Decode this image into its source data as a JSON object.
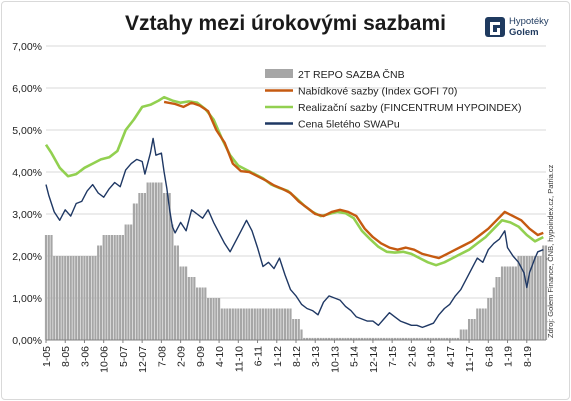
{
  "title": "Vztahy mezi úrokovými sazbami",
  "logo": {
    "line1": "Hypotéky",
    "line2": "Golem"
  },
  "source_note": "Zdroj: Golem Finance, ČNB, hypoindex.cz, Patria.cz",
  "colors": {
    "repo": "#a6a6a6",
    "offer": "#c55a11",
    "realized": "#92d050",
    "swap": "#1f3864",
    "grid": "#d9d9d9",
    "logo": "#1f3a5f"
  },
  "chart_data": {
    "type": "bar",
    "x_tick_labels": [
      "1-05",
      "8-05",
      "3-06",
      "10-06",
      "5-07",
      "12-07",
      "7-08",
      "2-09",
      "9-09",
      "4-10",
      "11-10",
      "6-11",
      "1-12",
      "8-12",
      "3-13",
      "10-13",
      "5-14",
      "12-14",
      "7-15",
      "2-16",
      "9-16",
      "4-17",
      "11-17",
      "6-18",
      "1-19",
      "8-19"
    ],
    "x_range": [
      "2005-01",
      "2020-03"
    ],
    "y_tick_labels": [
      "0,00%",
      "1,00%",
      "2,00%",
      "3,00%",
      "4,00%",
      "5,00%",
      "6,00%",
      "7,00%"
    ],
    "ylim": [
      0,
      7
    ],
    "grid": true,
    "legend_position": "top-center",
    "series": [
      {
        "name": "2T REPO SAZBA ČNB",
        "kind": "bar",
        "points": [
          [
            "2005-01",
            2.5
          ],
          [
            "2005-04",
            2.0
          ],
          [
            "2006-08",
            2.25
          ],
          [
            "2006-10",
            2.5
          ],
          [
            "2007-06",
            2.75
          ],
          [
            "2007-09",
            3.25
          ],
          [
            "2007-11",
            3.5
          ],
          [
            "2008-02",
            3.75
          ],
          [
            "2008-08",
            3.5
          ],
          [
            "2008-11",
            2.75
          ],
          [
            "2008-12",
            2.25
          ],
          [
            "2009-02",
            1.75
          ],
          [
            "2009-05",
            1.5
          ],
          [
            "2009-08",
            1.25
          ],
          [
            "2009-12",
            1.0
          ],
          [
            "2010-05",
            0.75
          ],
          [
            "2012-07",
            0.5
          ],
          [
            "2012-10",
            0.25
          ],
          [
            "2012-11",
            0.05
          ],
          [
            "2017-08",
            0.25
          ],
          [
            "2017-11",
            0.5
          ],
          [
            "2018-02",
            0.75
          ],
          [
            "2018-06",
            1.0
          ],
          [
            "2018-08",
            1.25
          ],
          [
            "2018-09",
            1.5
          ],
          [
            "2018-11",
            1.75
          ],
          [
            "2019-05",
            2.0
          ],
          [
            "2020-02",
            2.25
          ]
        ]
      },
      {
        "name": "Nabídkové sazby  (Index GOFI 70)",
        "kind": "line",
        "points": [
          [
            "2008-08",
            5.67
          ],
          [
            "2008-12",
            5.62
          ],
          [
            "2009-03",
            5.55
          ],
          [
            "2009-06",
            5.65
          ],
          [
            "2009-09",
            5.58
          ],
          [
            "2009-12",
            5.45
          ],
          [
            "2010-03",
            5.0
          ],
          [
            "2010-06",
            4.7
          ],
          [
            "2010-09",
            4.2
          ],
          [
            "2010-12",
            4.02
          ],
          [
            "2011-03",
            4.0
          ],
          [
            "2011-06",
            3.9
          ],
          [
            "2011-09",
            3.8
          ],
          [
            "2011-12",
            3.68
          ],
          [
            "2012-03",
            3.6
          ],
          [
            "2012-06",
            3.5
          ],
          [
            "2012-09",
            3.3
          ],
          [
            "2012-12",
            3.15
          ],
          [
            "2013-03",
            3.0
          ],
          [
            "2013-06",
            2.95
          ],
          [
            "2013-09",
            3.05
          ],
          [
            "2013-12",
            3.1
          ],
          [
            "2014-03",
            3.05
          ],
          [
            "2014-06",
            2.95
          ],
          [
            "2014-09",
            2.65
          ],
          [
            "2014-12",
            2.45
          ],
          [
            "2015-03",
            2.3
          ],
          [
            "2015-06",
            2.2
          ],
          [
            "2015-09",
            2.15
          ],
          [
            "2015-12",
            2.2
          ],
          [
            "2016-03",
            2.15
          ],
          [
            "2016-06",
            2.05
          ],
          [
            "2016-09",
            2.0
          ],
          [
            "2016-12",
            1.95
          ],
          [
            "2017-03",
            2.05
          ],
          [
            "2017-06",
            2.15
          ],
          [
            "2017-09",
            2.25
          ],
          [
            "2017-12",
            2.35
          ],
          [
            "2018-03",
            2.5
          ],
          [
            "2018-06",
            2.65
          ],
          [
            "2018-09",
            2.85
          ],
          [
            "2018-12",
            3.05
          ],
          [
            "2019-03",
            2.95
          ],
          [
            "2019-06",
            2.85
          ],
          [
            "2019-09",
            2.65
          ],
          [
            "2019-12",
            2.5
          ],
          [
            "2020-02",
            2.55
          ]
        ]
      },
      {
        "name": "Realizační sazby  (FINCENTRUM   HYPOINDEX)",
        "kind": "line",
        "points": [
          [
            "2005-01",
            4.65
          ],
          [
            "2005-03",
            4.45
          ],
          [
            "2005-06",
            4.1
          ],
          [
            "2005-09",
            3.9
          ],
          [
            "2005-12",
            3.95
          ],
          [
            "2006-03",
            4.1
          ],
          [
            "2006-06",
            4.2
          ],
          [
            "2006-09",
            4.3
          ],
          [
            "2006-12",
            4.35
          ],
          [
            "2007-03",
            4.5
          ],
          [
            "2007-06",
            5.0
          ],
          [
            "2007-09",
            5.25
          ],
          [
            "2007-12",
            5.55
          ],
          [
            "2008-03",
            5.6
          ],
          [
            "2008-06",
            5.7
          ],
          [
            "2008-08",
            5.78
          ],
          [
            "2008-11",
            5.7
          ],
          [
            "2009-02",
            5.65
          ],
          [
            "2009-05",
            5.68
          ],
          [
            "2009-08",
            5.65
          ],
          [
            "2009-11",
            5.5
          ],
          [
            "2010-02",
            5.25
          ],
          [
            "2010-05",
            4.8
          ],
          [
            "2010-08",
            4.4
          ],
          [
            "2010-11",
            4.15
          ],
          [
            "2011-02",
            4.05
          ],
          [
            "2011-05",
            3.95
          ],
          [
            "2011-08",
            3.85
          ],
          [
            "2011-11",
            3.7
          ],
          [
            "2012-02",
            3.62
          ],
          [
            "2012-05",
            3.55
          ],
          [
            "2012-08",
            3.38
          ],
          [
            "2012-11",
            3.2
          ],
          [
            "2013-02",
            3.05
          ],
          [
            "2013-05",
            2.95
          ],
          [
            "2013-08",
            3.0
          ],
          [
            "2013-11",
            3.05
          ],
          [
            "2014-02",
            3.02
          ],
          [
            "2014-05",
            2.9
          ],
          [
            "2014-08",
            2.6
          ],
          [
            "2014-11",
            2.4
          ],
          [
            "2015-02",
            2.22
          ],
          [
            "2015-05",
            2.1
          ],
          [
            "2015-08",
            2.08
          ],
          [
            "2015-11",
            2.1
          ],
          [
            "2016-02",
            2.05
          ],
          [
            "2016-05",
            1.95
          ],
          [
            "2016-08",
            1.85
          ],
          [
            "2016-11",
            1.78
          ],
          [
            "2017-02",
            1.85
          ],
          [
            "2017-05",
            1.95
          ],
          [
            "2017-08",
            2.05
          ],
          [
            "2017-11",
            2.15
          ],
          [
            "2018-02",
            2.3
          ],
          [
            "2018-05",
            2.45
          ],
          [
            "2018-08",
            2.65
          ],
          [
            "2018-11",
            2.85
          ],
          [
            "2019-02",
            2.8
          ],
          [
            "2019-05",
            2.7
          ],
          [
            "2019-08",
            2.5
          ],
          [
            "2019-11",
            2.35
          ],
          [
            "2020-02",
            2.45
          ]
        ]
      },
      {
        "name": "Cena 5letého SWAPu",
        "kind": "line",
        "points": [
          [
            "2005-01",
            3.7
          ],
          [
            "2005-02",
            3.45
          ],
          [
            "2005-04",
            3.05
          ],
          [
            "2005-06",
            2.85
          ],
          [
            "2005-08",
            3.1
          ],
          [
            "2005-10",
            2.95
          ],
          [
            "2005-12",
            3.25
          ],
          [
            "2006-02",
            3.3
          ],
          [
            "2006-04",
            3.55
          ],
          [
            "2006-06",
            3.7
          ],
          [
            "2006-08",
            3.5
          ],
          [
            "2006-10",
            3.4
          ],
          [
            "2006-12",
            3.6
          ],
          [
            "2007-02",
            3.75
          ],
          [
            "2007-04",
            3.65
          ],
          [
            "2007-06",
            4.05
          ],
          [
            "2007-08",
            4.2
          ],
          [
            "2007-10",
            4.3
          ],
          [
            "2007-12",
            4.25
          ],
          [
            "2008-01",
            3.95
          ],
          [
            "2008-03",
            4.45
          ],
          [
            "2008-04",
            4.8
          ],
          [
            "2008-05",
            4.4
          ],
          [
            "2008-07",
            4.45
          ],
          [
            "2008-08",
            4.0
          ],
          [
            "2008-09",
            3.6
          ],
          [
            "2008-10",
            3.1
          ],
          [
            "2008-11",
            2.7
          ],
          [
            "2008-12",
            2.55
          ],
          [
            "2009-02",
            2.8
          ],
          [
            "2009-04",
            2.6
          ],
          [
            "2009-06",
            3.1
          ],
          [
            "2009-08",
            3.0
          ],
          [
            "2009-10",
            2.9
          ],
          [
            "2009-12",
            3.1
          ],
          [
            "2010-02",
            2.8
          ],
          [
            "2010-04",
            2.55
          ],
          [
            "2010-06",
            2.3
          ],
          [
            "2010-08",
            2.1
          ],
          [
            "2010-10",
            2.35
          ],
          [
            "2010-12",
            2.6
          ],
          [
            "2011-02",
            2.85
          ],
          [
            "2011-04",
            2.6
          ],
          [
            "2011-06",
            2.2
          ],
          [
            "2011-08",
            1.75
          ],
          [
            "2011-10",
            1.85
          ],
          [
            "2011-12",
            1.7
          ],
          [
            "2012-02",
            1.95
          ],
          [
            "2012-04",
            1.55
          ],
          [
            "2012-06",
            1.2
          ],
          [
            "2012-08",
            1.05
          ],
          [
            "2012-10",
            0.85
          ],
          [
            "2012-12",
            0.75
          ],
          [
            "2013-02",
            0.7
          ],
          [
            "2013-04",
            0.6
          ],
          [
            "2013-06",
            0.9
          ],
          [
            "2013-08",
            1.05
          ],
          [
            "2013-10",
            1.0
          ],
          [
            "2013-12",
            0.95
          ],
          [
            "2014-02",
            0.8
          ],
          [
            "2014-04",
            0.7
          ],
          [
            "2014-06",
            0.55
          ],
          [
            "2014-08",
            0.5
          ],
          [
            "2014-10",
            0.45
          ],
          [
            "2014-12",
            0.45
          ],
          [
            "2015-02",
            0.35
          ],
          [
            "2015-04",
            0.5
          ],
          [
            "2015-06",
            0.65
          ],
          [
            "2015-08",
            0.55
          ],
          [
            "2015-10",
            0.45
          ],
          [
            "2015-12",
            0.4
          ],
          [
            "2016-02",
            0.35
          ],
          [
            "2016-04",
            0.35
          ],
          [
            "2016-06",
            0.3
          ],
          [
            "2016-08",
            0.35
          ],
          [
            "2016-10",
            0.4
          ],
          [
            "2016-12",
            0.6
          ],
          [
            "2017-02",
            0.75
          ],
          [
            "2017-04",
            0.85
          ],
          [
            "2017-06",
            1.05
          ],
          [
            "2017-08",
            1.2
          ],
          [
            "2017-10",
            1.45
          ],
          [
            "2017-12",
            1.7
          ],
          [
            "2018-02",
            1.95
          ],
          [
            "2018-04",
            1.85
          ],
          [
            "2018-06",
            2.15
          ],
          [
            "2018-08",
            2.3
          ],
          [
            "2018-10",
            2.4
          ],
          [
            "2018-12",
            2.6
          ],
          [
            "2019-01",
            2.2
          ],
          [
            "2019-03",
            2.0
          ],
          [
            "2019-05",
            1.85
          ],
          [
            "2019-07",
            1.6
          ],
          [
            "2019-08",
            1.25
          ],
          [
            "2019-09",
            1.6
          ],
          [
            "2019-11",
            1.95
          ],
          [
            "2019-12",
            2.1
          ],
          [
            "2020-02",
            2.15
          ]
        ]
      }
    ]
  }
}
